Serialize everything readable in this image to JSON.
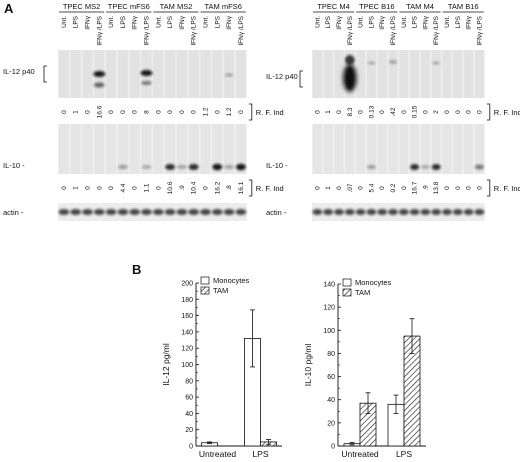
{
  "panel_a": {
    "label": "A",
    "left": {
      "groups": [
        "TPEC MS2",
        "TPEC mFS6",
        "TAM MS2",
        "TAM mFS6"
      ],
      "lanes": [
        "Unt.",
        "LPS",
        "IFNγ",
        "IFNγ /LPS"
      ],
      "il12_label": "IL-12 p40",
      "il12_rfi": [
        "0",
        "1",
        "0",
        "16.6",
        "0",
        "0",
        "0",
        "8",
        "0",
        "0",
        "0",
        "0",
        "1.2",
        "0",
        "1.2",
        "0"
      ],
      "il10_label": "IL-10 -",
      "il10_rfi": [
        "0",
        "1",
        "0",
        "0",
        "0",
        "4.4",
        "0",
        "1.1",
        "0",
        "10.6",
        ".9",
        "10.4",
        "0",
        "16.2",
        ".8",
        "16.1"
      ],
      "rfi_label": "R. F. Ind",
      "actin_label": "actin -"
    },
    "right": {
      "groups": [
        "TPEC M4",
        "TPEC B16",
        "TAM M4",
        "TAM B16"
      ],
      "lanes": [
        "Unt.",
        "LPS",
        "IFNγ",
        "IFNγ /LPS"
      ],
      "il12_label": "IL-12 p40",
      "il12_rfi": [
        "0",
        "1",
        "0",
        "8.3",
        "0",
        "0.13",
        "0",
        ".42",
        "0",
        "0.15",
        "0",
        "2",
        "0",
        "0",
        "0",
        "0"
      ],
      "il10_label": "IL-10 -",
      "il10_rfi": [
        "0",
        "1",
        "0",
        ".07",
        "0",
        "5.4",
        "0",
        "0.2",
        "0",
        "16.7",
        ".9",
        "13.8",
        "0",
        "0",
        "0",
        "0"
      ],
      "rfi_label": "R. F. Ind",
      "actin_label": "actin -"
    }
  },
  "panel_b": {
    "label": "B",
    "legend": [
      {
        "name": "Monocytes",
        "pattern": "open"
      },
      {
        "name": "TAM",
        "pattern": "hatched"
      }
    ]
  },
  "chart_data": [
    {
      "type": "bar",
      "ylabel": "IL-12 pg/ml",
      "ylim": [
        0,
        200
      ],
      "yticks": [
        "0",
        "20",
        "40",
        "60",
        "80",
        "100",
        "120",
        "140",
        "160",
        "180",
        "200"
      ],
      "categories": [
        "Untreated",
        "LPS"
      ],
      "series": [
        {
          "name": "Monocytes",
          "values": [
            4,
            132
          ],
          "errors": [
            1,
            35
          ]
        },
        {
          "name": "TAM",
          "values": [
            0,
            5
          ],
          "errors": [
            0,
            3
          ]
        }
      ]
    },
    {
      "type": "bar",
      "ylabel": "IL-10 pg/ml",
      "ylim": [
        0,
        140
      ],
      "yticks": [
        "0",
        "20",
        "40",
        "60",
        "80",
        "100",
        "120",
        "140"
      ],
      "categories": [
        "Untreated",
        "LPS"
      ],
      "series": [
        {
          "name": "Monocytes",
          "values": [
            2,
            36
          ],
          "errors": [
            1,
            8
          ]
        },
        {
          "name": "TAM",
          "values": [
            37,
            95
          ],
          "errors": [
            9,
            15
          ]
        }
      ]
    }
  ]
}
